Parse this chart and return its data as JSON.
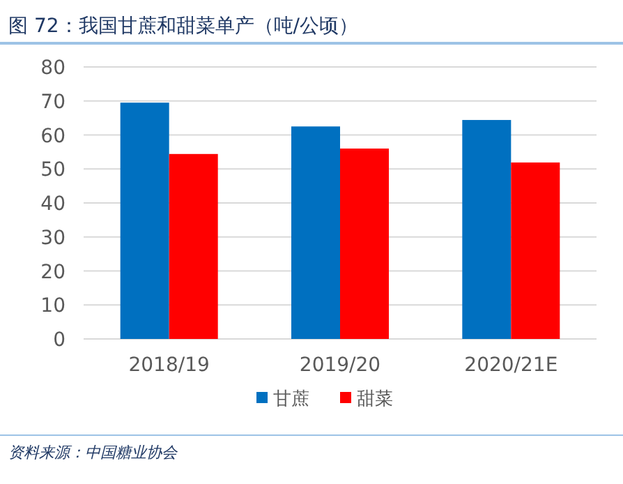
{
  "chart_data": {
    "type": "bar",
    "title": "图 72：我国甘蔗和甜菜单产（吨/公顷）",
    "categories": [
      "2018/19",
      "2019/20",
      "2020/21E"
    ],
    "series": [
      {
        "name": "甘蔗",
        "color": "#0070c0",
        "values": [
          69.5,
          62.5,
          64.4
        ]
      },
      {
        "name": "甜菜",
        "color": "#ff0000",
        "values": [
          54.4,
          56.0,
          51.9
        ]
      }
    ],
    "ylim": [
      0,
      80
    ],
    "yticks": [
      0,
      10,
      20,
      30,
      40,
      50,
      60,
      70,
      80
    ],
    "grid": "y",
    "legend": "bottom",
    "annotations": [
      "资料来源：中国糖业协会"
    ]
  }
}
